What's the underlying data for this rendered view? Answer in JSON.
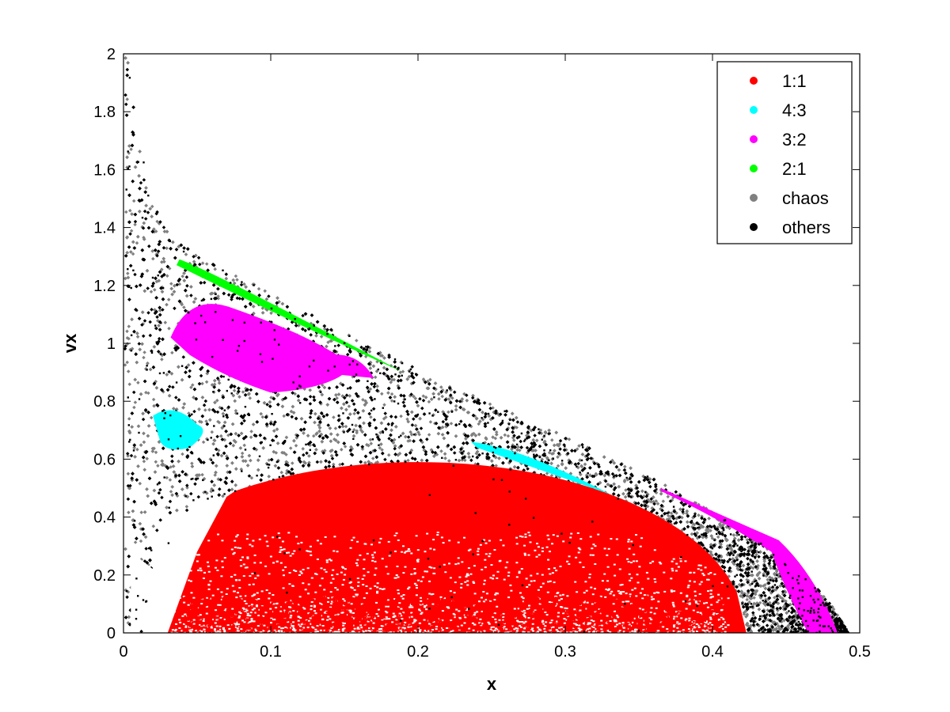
{
  "chart_data": {
    "type": "scatter",
    "title": "",
    "xlabel": "x",
    "ylabel": "vx",
    "xlim": [
      0,
      0.5
    ],
    "ylim": [
      0,
      2
    ],
    "xticks": [
      "0",
      "0.1",
      "0.2",
      "0.3",
      "0.4",
      "0.5"
    ],
    "yticks": [
      "0",
      "0.2",
      "0.4",
      "0.6",
      "0.8",
      "1",
      "1.2",
      "1.4",
      "1.6",
      "1.8",
      "2"
    ],
    "xtick_values": [
      0,
      0.1,
      0.2,
      0.3,
      0.4,
      0.5
    ],
    "ytick_values": [
      0,
      0.2,
      0.4,
      0.6,
      0.8,
      1.0,
      1.2,
      1.4,
      1.6,
      1.8,
      2.0
    ],
    "grid": false,
    "legend_position": "top-right",
    "series": [
      {
        "name": "1:1",
        "color": "#ff0000",
        "region": "filled half-ellipse centered near x=0.19, vx from 0 to about 0.59, spanning x from about 0.03 to 0.42",
        "values": [
          [
            0.04,
            0.2
          ],
          [
            0.07,
            0.45
          ],
          [
            0.1,
            0.55
          ],
          [
            0.15,
            0.58
          ],
          [
            0.2,
            0.58
          ],
          [
            0.25,
            0.56
          ],
          [
            0.3,
            0.5
          ],
          [
            0.35,
            0.4
          ],
          [
            0.38,
            0.3
          ],
          [
            0.41,
            0.12
          ],
          [
            0.2,
            0.3
          ],
          [
            0.1,
            0.2
          ],
          [
            0.3,
            0.2
          ]
        ]
      },
      {
        "name": "4:3",
        "color": "#00ffff",
        "region": "island near x=0.035, vx about 0.7 and thin band from x=0.235 to 0.33 around vx 0.55-0.65",
        "values": [
          [
            0.03,
            0.72
          ],
          [
            0.04,
            0.67
          ],
          [
            0.025,
            0.69
          ],
          [
            0.24,
            0.65
          ],
          [
            0.27,
            0.6
          ],
          [
            0.3,
            0.56
          ],
          [
            0.325,
            0.49
          ]
        ]
      },
      {
        "name": "3:2",
        "color": "#ff00ff",
        "region": "large island x from 0.02 to 0.15 around vx 0.8-1.15 and tail band x from 0.36 to 0.48, vx 0.5 to 0",
        "values": [
          [
            0.04,
            1.1
          ],
          [
            0.06,
            1.05
          ],
          [
            0.08,
            0.98
          ],
          [
            0.1,
            0.95
          ],
          [
            0.12,
            0.9
          ],
          [
            0.14,
            0.88
          ],
          [
            0.1,
            0.85
          ],
          [
            0.37,
            0.49
          ],
          [
            0.41,
            0.38
          ],
          [
            0.44,
            0.3
          ],
          [
            0.46,
            0.15
          ],
          [
            0.47,
            0.02
          ]
        ]
      },
      {
        "name": "2:1",
        "color": "#00ff00",
        "region": "thin diagonal band from x=0.04, vx 1.28 to x=0.19, vx 0.9",
        "values": [
          [
            0.04,
            1.27
          ],
          [
            0.07,
            1.2
          ],
          [
            0.1,
            1.12
          ],
          [
            0.13,
            1.05
          ],
          [
            0.16,
            0.97
          ],
          [
            0.19,
            0.9
          ]
        ]
      },
      {
        "name": "chaos",
        "color": "#808080",
        "region": "filled area bounded above by the curve from (0.003, 2.0) down to (0.49, 0)",
        "values": [
          [
            0.01,
            1.5
          ],
          [
            0.05,
            1.3
          ],
          [
            0.1,
            1.15
          ],
          [
            0.2,
            0.9
          ],
          [
            0.3,
            0.7
          ],
          [
            0.4,
            0.45
          ],
          [
            0.48,
            0.1
          ]
        ]
      },
      {
        "name": "others",
        "color": "#000000",
        "region": "scattered throughout the chaotic region",
        "values": [
          [
            0.01,
            1.2
          ],
          [
            0.05,
            0.9
          ],
          [
            0.15,
            0.7
          ],
          [
            0.25,
            0.75
          ],
          [
            0.35,
            0.55
          ],
          [
            0.43,
            0.3
          ]
        ]
      }
    ]
  }
}
